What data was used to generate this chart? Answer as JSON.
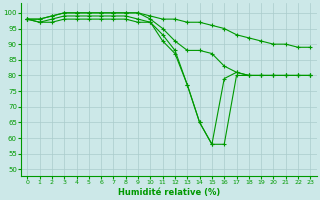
{
  "xlabel": "Humidité relative (%)",
  "bg_color": "#cce8e8",
  "grid_color": "#aacccc",
  "line_color": "#009900",
  "xlim": [
    -0.5,
    23.5
  ],
  "ylim": [
    48,
    103
  ],
  "yticks": [
    50,
    55,
    60,
    65,
    70,
    75,
    80,
    85,
    90,
    95,
    100
  ],
  "xticks": [
    0,
    1,
    2,
    3,
    4,
    5,
    6,
    7,
    8,
    9,
    10,
    11,
    12,
    13,
    14,
    15,
    16,
    17,
    18,
    19,
    20,
    21,
    22,
    23
  ],
  "lines": [
    [
      98,
      98,
      99,
      100,
      100,
      100,
      100,
      100,
      100,
      100,
      99,
      98,
      98,
      97,
      97,
      96,
      95,
      93,
      92,
      91,
      90,
      90,
      89,
      89
    ],
    [
      98,
      98,
      99,
      100,
      100,
      100,
      100,
      100,
      100,
      100,
      98,
      95,
      91,
      88,
      88,
      87,
      83,
      81,
      80,
      80,
      80,
      80,
      80,
      80
    ],
    [
      98,
      97,
      98,
      99,
      99,
      99,
      99,
      99,
      99,
      98,
      97,
      93,
      88,
      77,
      65,
      58,
      79,
      81,
      80,
      80,
      80,
      80,
      80,
      80
    ],
    [
      98,
      97,
      97,
      98,
      98,
      98,
      98,
      98,
      98,
      97,
      97,
      91,
      87,
      77,
      65,
      58,
      58,
      80,
      80,
      80,
      80,
      80,
      80,
      80
    ]
  ]
}
